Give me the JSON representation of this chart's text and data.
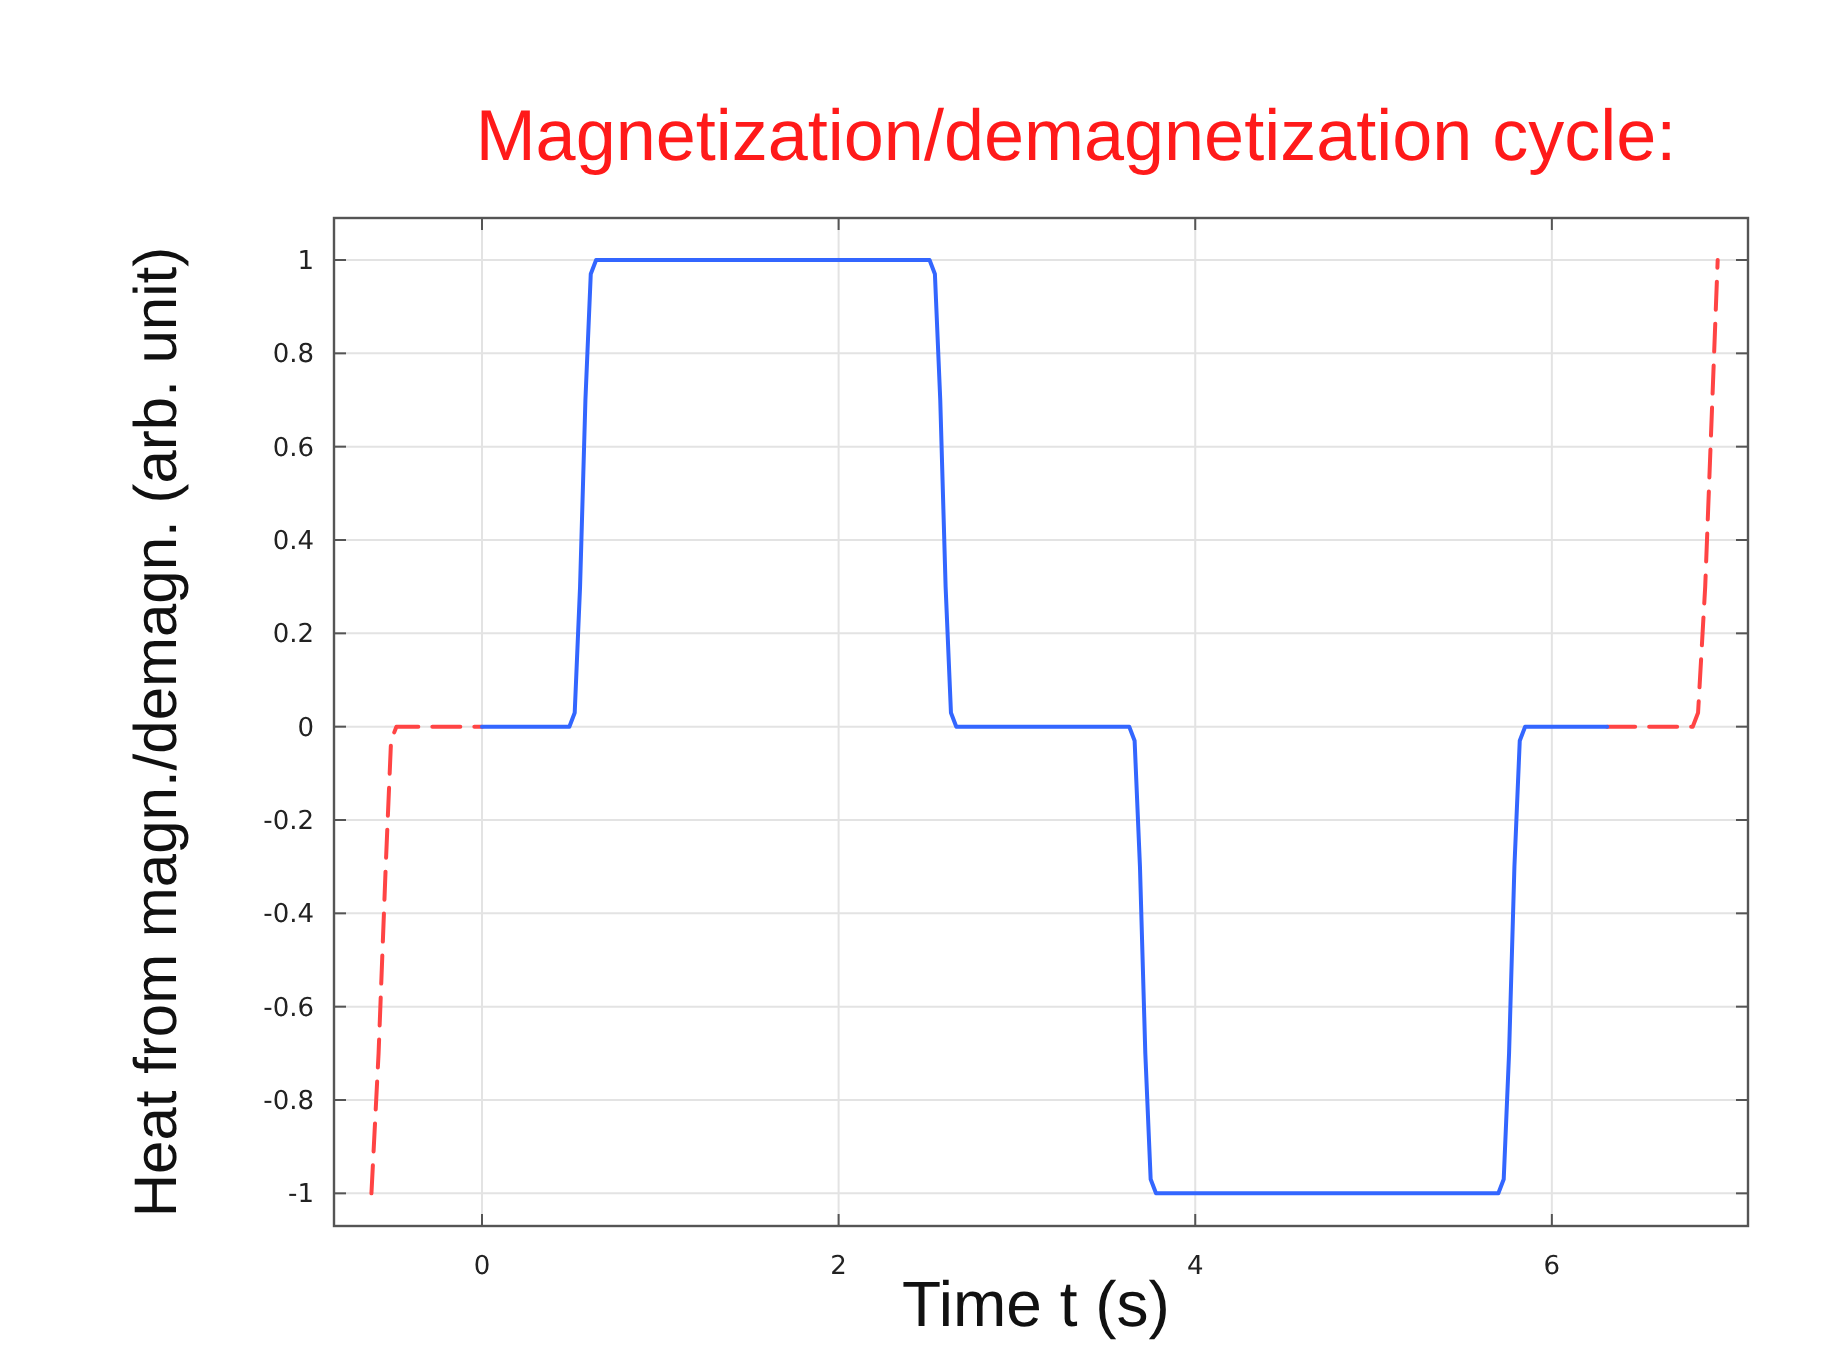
{
  "chart_data": {
    "type": "line",
    "title": "Magnetization/demagnetization cycle:",
    "xlabel": "Time t (s)",
    "ylabel": "Heat from magn./demagn. (arb. unit)",
    "xlim": [
      -0.83,
      7.1
    ],
    "ylim": [
      -1.07,
      1.09
    ],
    "xticks": [
      0,
      2,
      4,
      6
    ],
    "yticks": [
      -1,
      -0.8,
      -0.6,
      -0.4,
      -0.2,
      0,
      0.2,
      0.4,
      0.6,
      0.8,
      1
    ],
    "grid": true,
    "marker": "none",
    "series": [
      {
        "color": "#ff4444",
        "line_style": "dashed",
        "x": [
          -0.62,
          -0.58,
          -0.54,
          -0.51,
          -0.48,
          0,
          null,
          6.31,
          6.79,
          6.82,
          6.86,
          6.9,
          6.93
        ],
        "values": [
          -1,
          -0.7,
          -0.3,
          -0.03,
          0,
          0,
          null,
          0,
          0,
          0.03,
          0.3,
          0.7,
          1
        ]
      },
      {
        "color": "#3366ff",
        "line_style": "solid",
        "x": [
          0,
          0.49,
          0.52,
          0.55,
          0.58,
          0.61,
          0.64,
          2.51,
          2.54,
          2.57,
          2.6,
          2.63,
          2.66,
          3.63,
          3.66,
          3.69,
          3.72,
          3.75,
          3.78,
          5.7,
          5.73,
          5.76,
          5.79,
          5.82,
          5.85,
          6.31
        ],
        "values": [
          0,
          0,
          0.03,
          0.3,
          0.7,
          0.97,
          1,
          1,
          0.97,
          0.7,
          0.3,
          0.03,
          0,
          0,
          -0.03,
          -0.3,
          -0.7,
          -0.97,
          -1,
          -1,
          -0.97,
          -0.7,
          -0.3,
          -0.03,
          0,
          0
        ]
      }
    ]
  }
}
